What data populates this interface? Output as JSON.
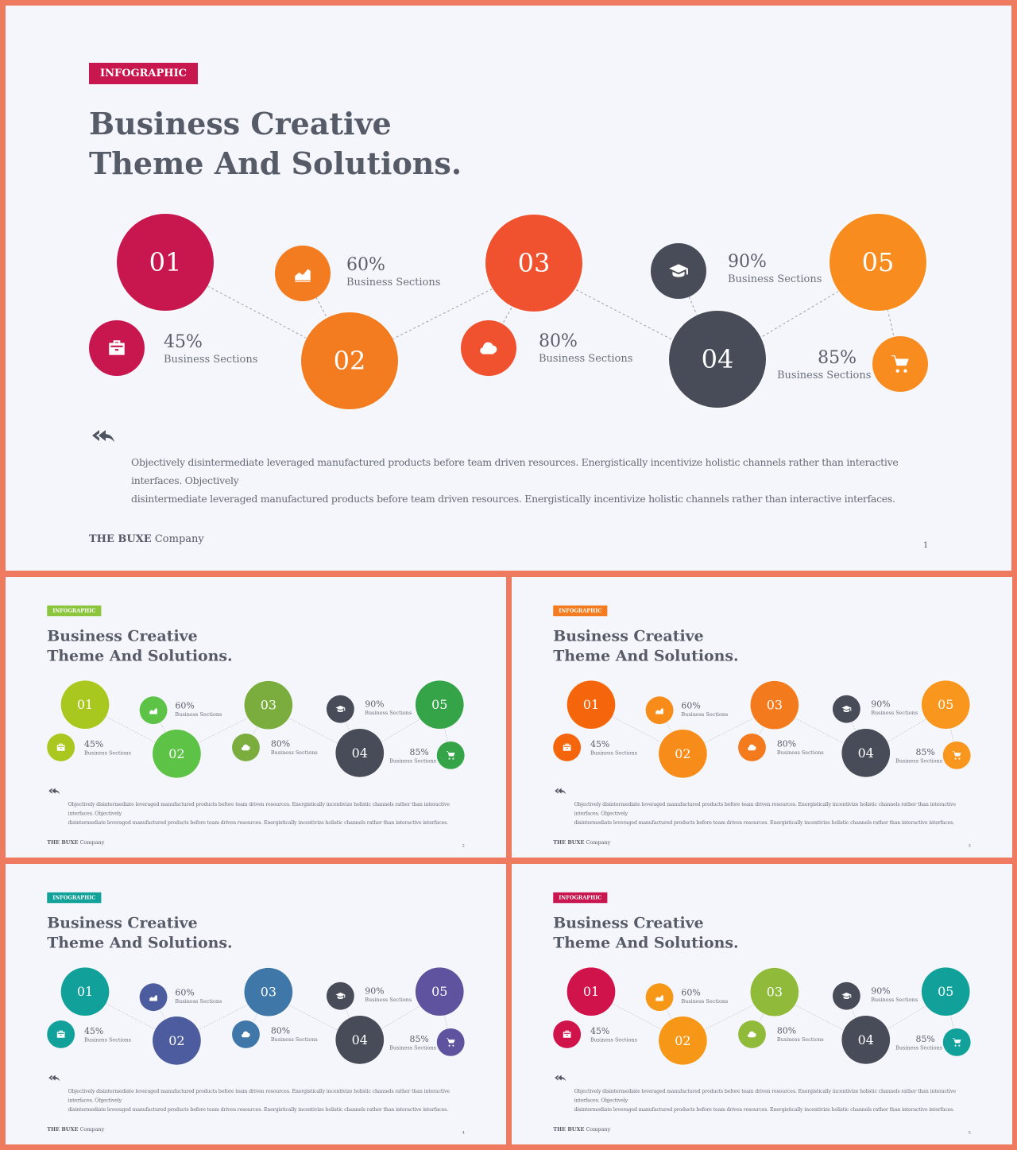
{
  "tag_label": "INFOGRAPHIC",
  "title_line1": "Business Creative",
  "title_line2": "Theme And Solutions.",
  "steps": [
    "01",
    "02",
    "03",
    "04",
    "05"
  ],
  "stats": [
    {
      "pct": "45%",
      "label": "Business Sections"
    },
    {
      "pct": "60%",
      "label": "Business Sections"
    },
    {
      "pct": "80%",
      "label": "Business Sections"
    },
    {
      "pct": "90%",
      "label": "Business Sections"
    },
    {
      "pct": "85%",
      "label": "Business Sections"
    }
  ],
  "icons": [
    "briefcase-icon",
    "chart-icon",
    "cloud-icon",
    "graduation-cap-icon",
    "cart-icon"
  ],
  "paragraph_line1": "Objectively disintermediate leveraged manufactured products before team  driven resources. Energistically incentivize holistic channels rather than interactive interfaces. Objectively",
  "paragraph_line2": "disintermediate leveraged manufactured products before team driven resources. Energistically incentivize holistic channels rather than interactive interfaces.",
  "company_bold": "THE BUXE",
  "company_rest": " Company",
  "slides": [
    {
      "page": "1",
      "tag_color": "#c8174e",
      "circles": [
        "#c8174e",
        "#f47c20",
        "#f0522f",
        "#474c58",
        "#f88c1e"
      ],
      "icon_colors": [
        "#c8174e",
        "#f47c20",
        "#f0522f",
        "#474c58",
        "#f88c1e"
      ]
    },
    {
      "page": "2",
      "tag_color": "#8cc63f",
      "circles": [
        "#a8c71f",
        "#5cc346",
        "#7aad3d",
        "#474c58",
        "#35a448"
      ],
      "icon_colors": [
        "#a8c71f",
        "#5cc346",
        "#7aad3d",
        "#474c58",
        "#35a448"
      ]
    },
    {
      "page": "3",
      "tag_color": "#f47c20",
      "circles": [
        "#f5660c",
        "#f88c1a",
        "#f47a1e",
        "#474c58",
        "#f9961e"
      ],
      "icon_colors": [
        "#f5660c",
        "#f88c1a",
        "#f47a1e",
        "#474c58",
        "#f9961e"
      ]
    },
    {
      "page": "4",
      "tag_color": "#12a29a",
      "circles": [
        "#12a19a",
        "#4d5c9e",
        "#3e77a8",
        "#474c58",
        "#5f53a0"
      ],
      "icon_colors": [
        "#12a19a",
        "#4d5c9e",
        "#3e77a8",
        "#474c58",
        "#5f53a0"
      ]
    },
    {
      "page": "5",
      "tag_color": "#c8174e",
      "circles": [
        "#d0134a",
        "#f79718",
        "#8fba3a",
        "#474c58",
        "#12a19a"
      ],
      "icon_colors": [
        "#d0134a",
        "#f79718",
        "#8fba3a",
        "#474c58",
        "#12a19a"
      ]
    }
  ]
}
